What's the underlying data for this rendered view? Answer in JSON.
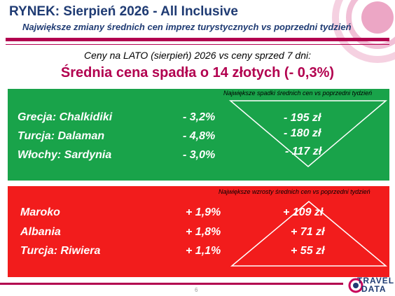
{
  "header": {
    "title": "RYNEK: Sierpień 2026 - All Inclusive",
    "subtitle": "Największe zmiany średnich cen imprez turystycznych vs poprzedni tydzień"
  },
  "summary": {
    "intro": "Ceny na LATO (sierpień) 2026 vs ceny sprzed 7 dni:",
    "headline": "Średnia cena spadła o 14 złotych (- 0,3%)"
  },
  "decreases": {
    "note": "Największe spadki średnich cen vs poprzedni tydzień",
    "rows": [
      {
        "destination": "Grecja: Chalkidiki",
        "percent": "-  3,2%",
        "amount": "- 195 zł"
      },
      {
        "destination": "Turcja: Dalaman",
        "percent": "-  4,8%",
        "amount": "- 180 zł"
      },
      {
        "destination": "Włochy: Sardynia",
        "percent": "-  3,0%",
        "amount": "- 117 zł"
      }
    ]
  },
  "increases": {
    "note": "Największe wzrosty średnich cen vs poprzedni tydzień",
    "rows": [
      {
        "destination": "Maroko",
        "percent": "+ 1,9%",
        "amount": "+ 109 zł"
      },
      {
        "destination": "Albania",
        "percent": "+ 1,8%",
        "amount": "+ 71 zł"
      },
      {
        "destination": "Turcja: Riwiera",
        "percent": "+ 1,1%",
        "amount": "+ 55 zł"
      }
    ]
  },
  "footer": {
    "page_number": "6",
    "logo_top": "TRAVEL",
    "logo_bottom": "DATA"
  },
  "colors": {
    "accent": "#b2004f",
    "green_panel": "#19a34a",
    "red_panel": "#f21c1c",
    "title_blue": "#1f3b73"
  },
  "icons": [
    "travel-data-logo-icon",
    "decrease-triangle-icon",
    "increase-triangle-icon"
  ]
}
